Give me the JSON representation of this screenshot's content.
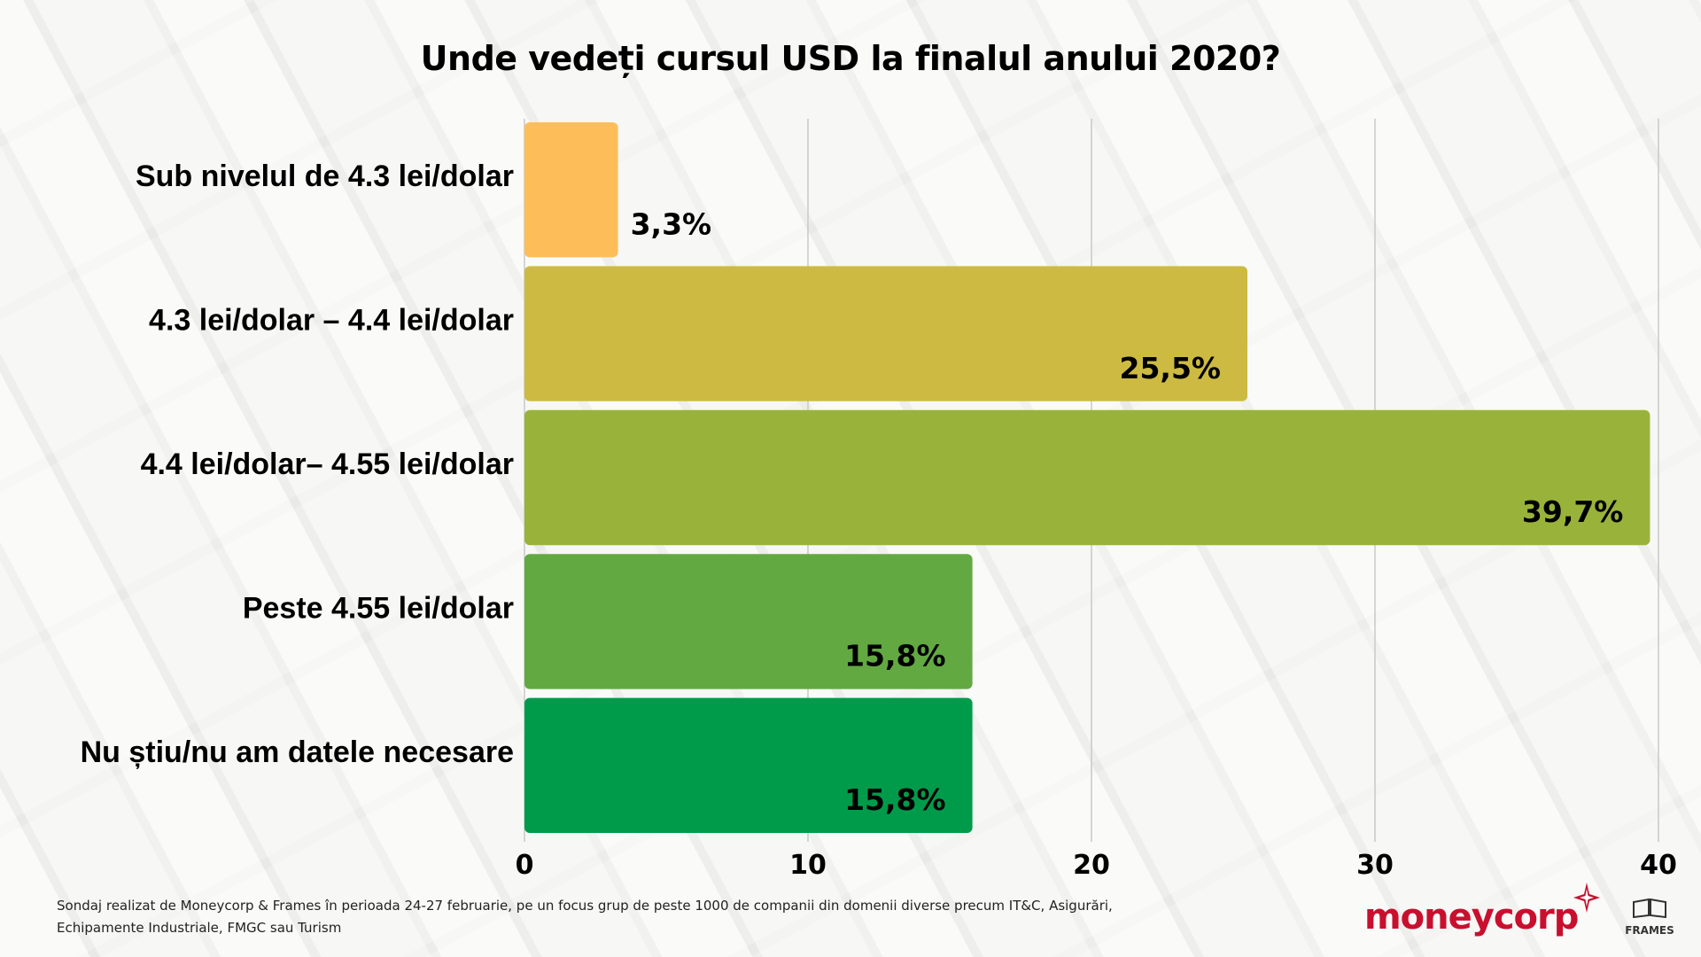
{
  "chart_data": {
    "type": "bar",
    "orientation": "horizontal",
    "title": "Unde vedeți cursul USD la finalul anului 2020?",
    "categories": [
      "Sub nivelul de 4.3 lei/dolar",
      "4.3 lei/dolar – 4.4 lei/dolar",
      "4.4 lei/dolar– 4.55 lei/dolar",
      "Peste 4.55 lei/dolar",
      "Nu știu/nu am datele necesare"
    ],
    "values": [
      3.3,
      25.5,
      39.7,
      15.8,
      15.8
    ],
    "value_labels": [
      "3,3%",
      "25,5%",
      "39,7%",
      "15,8%",
      "15,8%"
    ],
    "colors": [
      "#fdbe5a",
      "#cdba42",
      "#99b33a",
      "#62a942",
      "#009b4a"
    ],
    "xlim": [
      0,
      40
    ],
    "xticks": [
      0,
      10,
      20,
      30,
      40
    ],
    "grid": true
  },
  "footnote": "Sondaj realizat de Moneycorp & Frames  în perioada 24-27 februarie, pe un focus grup de peste 1000 de companii din domenii diverse precum IT&C, Asigurări, Echipamente Industriale, FMGC sau Turism",
  "logos": {
    "moneycorp": "moneycorp",
    "frames": "FRAMES",
    "accent": "#c8102e"
  }
}
